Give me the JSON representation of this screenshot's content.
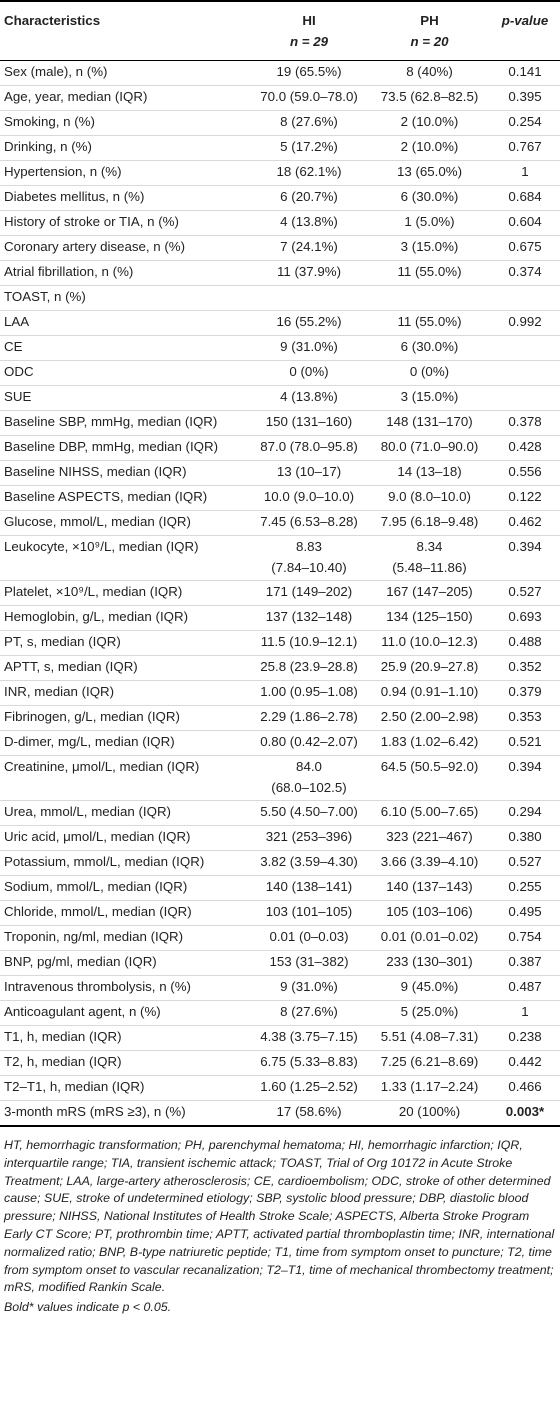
{
  "header": {
    "characteristics": "Characteristics",
    "hi": "HI",
    "hi_n": "n = 29",
    "ph": "PH",
    "ph_n": "n = 20",
    "pvalue": "p-value"
  },
  "rows": [
    {
      "name": "Sex (male), n (%)",
      "hi": "19 (65.5%)",
      "ph": "8 (40%)",
      "p": "0.141"
    },
    {
      "name": "Age, year, median (IQR)",
      "hi": "70.0 (59.0–78.0)",
      "ph": "73.5 (62.8–82.5)",
      "p": "0.395"
    },
    {
      "name": "Smoking, n (%)",
      "hi": "8 (27.6%)",
      "ph": "2 (10.0%)",
      "p": "0.254"
    },
    {
      "name": "Drinking, n (%)",
      "hi": "5 (17.2%)",
      "ph": "2 (10.0%)",
      "p": "0.767"
    },
    {
      "name": "Hypertension, n (%)",
      "hi": "18 (62.1%)",
      "ph": "13 (65.0%)",
      "p": "1"
    },
    {
      "name": "Diabetes mellitus, n (%)",
      "hi": "6 (20.7%)",
      "ph": "6 (30.0%)",
      "p": "0.684"
    },
    {
      "name": "History of stroke or TIA, n (%)",
      "hi": "4 (13.8%)",
      "ph": "1 (5.0%)",
      "p": "0.604"
    },
    {
      "name": "Coronary artery disease, n (%)",
      "hi": "7 (24.1%)",
      "ph": "3 (15.0%)",
      "p": "0.675"
    },
    {
      "name": "Atrial fibrillation, n (%)",
      "hi": "11 (37.9%)",
      "ph": "11 (55.0%)",
      "p": "0.374"
    },
    {
      "name": "TOAST, n (%)",
      "hi": "",
      "ph": "",
      "p": ""
    },
    {
      "name": "LAA",
      "hi": "16 (55.2%)",
      "ph": "11 (55.0%)",
      "p": "0.992"
    },
    {
      "name": "CE",
      "hi": "9 (31.0%)",
      "ph": "6 (30.0%)",
      "p": ""
    },
    {
      "name": "ODC",
      "hi": "0 (0%)",
      "ph": "0 (0%)",
      "p": ""
    },
    {
      "name": "SUE",
      "hi": "4 (13.8%)",
      "ph": "3 (15.0%)",
      "p": ""
    },
    {
      "name": "Baseline SBP, mmHg, median (IQR)",
      "hi": "150 (131–160)",
      "ph": "148 (131–170)",
      "p": "0.378"
    },
    {
      "name": "Baseline DBP, mmHg, median (IQR)",
      "hi": "87.0 (78.0–95.8)",
      "ph": "80.0 (71.0–90.0)",
      "p": "0.428"
    },
    {
      "name": "Baseline NIHSS, median (IQR)",
      "hi": "13 (10–17)",
      "ph": "14 (13–18)",
      "p": "0.556"
    },
    {
      "name": "Baseline ASPECTS, median (IQR)",
      "hi": "10.0 (9.0–10.0)",
      "ph": "9.0 (8.0–10.0)",
      "p": "0.122"
    },
    {
      "name": "Glucose, mmol/L, median (IQR)",
      "hi": "7.45 (6.53–8.28)",
      "ph": "7.95 (6.18–9.48)",
      "p": "0.462"
    },
    {
      "name": "Leukocyte, ×10⁹/L, median (IQR)",
      "hi": "8.83",
      "hi2": "(7.84–10.40)",
      "ph": "8.34",
      "ph2": "(5.48–11.86)",
      "p": "0.394"
    },
    {
      "name": "Platelet, ×10⁹/L, median (IQR)",
      "hi": "171 (149–202)",
      "ph": "167 (147–205)",
      "p": "0.527"
    },
    {
      "name": "Hemoglobin, g/L, median (IQR)",
      "hi": "137 (132–148)",
      "ph": "134 (125–150)",
      "p": "0.693"
    },
    {
      "name": "PT, s, median (IQR)",
      "hi": "11.5 (10.9–12.1)",
      "ph": "11.0 (10.0–12.3)",
      "p": "0.488"
    },
    {
      "name": "APTT, s, median (IQR)",
      "hi": "25.8 (23.9–28.8)",
      "ph": "25.9 (20.9–27.8)",
      "p": "0.352"
    },
    {
      "name": "INR, median (IQR)",
      "hi": "1.00 (0.95–1.08)",
      "ph": "0.94 (0.91–1.10)",
      "p": "0.379"
    },
    {
      "name": "Fibrinogen, g/L, median (IQR)",
      "hi": "2.29 (1.86–2.78)",
      "ph": "2.50 (2.00–2.98)",
      "p": "0.353"
    },
    {
      "name": "D-dimer, mg/L, median (IQR)",
      "hi": "0.80 (0.42–2.07)",
      "ph": "1.83 (1.02–6.42)",
      "p": "0.521"
    },
    {
      "name": "Creatinine, μmol/L, median (IQR)",
      "hi": "84.0",
      "hi2": "(68.0–102.5)",
      "ph": "64.5 (50.5–92.0)",
      "ph2": "",
      "p": "0.394"
    },
    {
      "name": "Urea, mmol/L, median (IQR)",
      "hi": "5.50 (4.50–7.00)",
      "ph": "6.10 (5.00–7.65)",
      "p": "0.294"
    },
    {
      "name": "Uric acid, μmol/L, median (IQR)",
      "hi": "321 (253–396)",
      "ph": "323 (221–467)",
      "p": "0.380"
    },
    {
      "name": "Potassium, mmol/L, median (IQR)",
      "hi": "3.82 (3.59–4.30)",
      "ph": "3.66 (3.39–4.10)",
      "p": "0.527"
    },
    {
      "name": "Sodium, mmol/L, median (IQR)",
      "hi": "140 (138–141)",
      "ph": "140 (137–143)",
      "p": "0.255"
    },
    {
      "name": "Chloride, mmol/L, median (IQR)",
      "hi": "103 (101–105)",
      "ph": "105 (103–106)",
      "p": "0.495"
    },
    {
      "name": "Troponin, ng/ml, median (IQR)",
      "hi": "0.01 (0–0.03)",
      "ph": "0.01 (0.01–0.02)",
      "p": "0.754"
    },
    {
      "name": "BNP, pg/ml, median (IQR)",
      "hi": "153 (31–382)",
      "ph": "233 (130–301)",
      "p": "0.387"
    },
    {
      "name": "Intravenous thrombolysis, n (%)",
      "hi": "9 (31.0%)",
      "ph": "9 (45.0%)",
      "p": "0.487"
    },
    {
      "name": "Anticoagulant agent, n (%)",
      "hi": "8 (27.6%)",
      "ph": "5 (25.0%)",
      "p": "1"
    },
    {
      "name": "T1, h, median (IQR)",
      "hi": "4.38 (3.75–7.15)",
      "ph": "5.51 (4.08–7.31)",
      "p": "0.238"
    },
    {
      "name": "T2, h, median (IQR)",
      "hi": "6.75 (5.33–8.83)",
      "ph": "7.25 (6.21–8.69)",
      "p": "0.442"
    },
    {
      "name": "T2–T1, h, median (IQR)",
      "hi": "1.60 (1.25–2.52)",
      "ph": "1.33 (1.17–2.24)",
      "p": "0.466"
    },
    {
      "name": "3-month mRS (mRS ≥3), n (%)",
      "hi": "17 (58.6%)",
      "ph": "20 (100%)",
      "p": "0.003*"
    }
  ],
  "footnote": "HT, hemorrhagic transformation; PH, parenchymal hematoma; HI, hemorrhagic infarction; IQR, interquartile range; TIA, transient ischemic attack; TOAST, Trial of Org 10172 in Acute Stroke Treatment; LAA, large-artery atherosclerosis; CE, cardioembolism; ODC, stroke of other determined cause; SUE, stroke of undetermined etiology; SBP, systolic blood pressure; DBP, diastolic blood pressure; NIHSS, National Institutes of Health Stroke Scale; ASPECTS, Alberta Stroke Program Early CT Score; PT, prothrombin time; APTT, activated partial thromboplastin time; INR, international normalized ratio; BNP, B-type natriuretic peptide; T1, time from symptom onset to puncture; T2, time from symptom onset to vascular recanalization; T2–T1, time of mechanical thrombectomy treatment; mRS, modified Rankin Scale.",
  "note": "Bold* values indicate p < 0.05."
}
